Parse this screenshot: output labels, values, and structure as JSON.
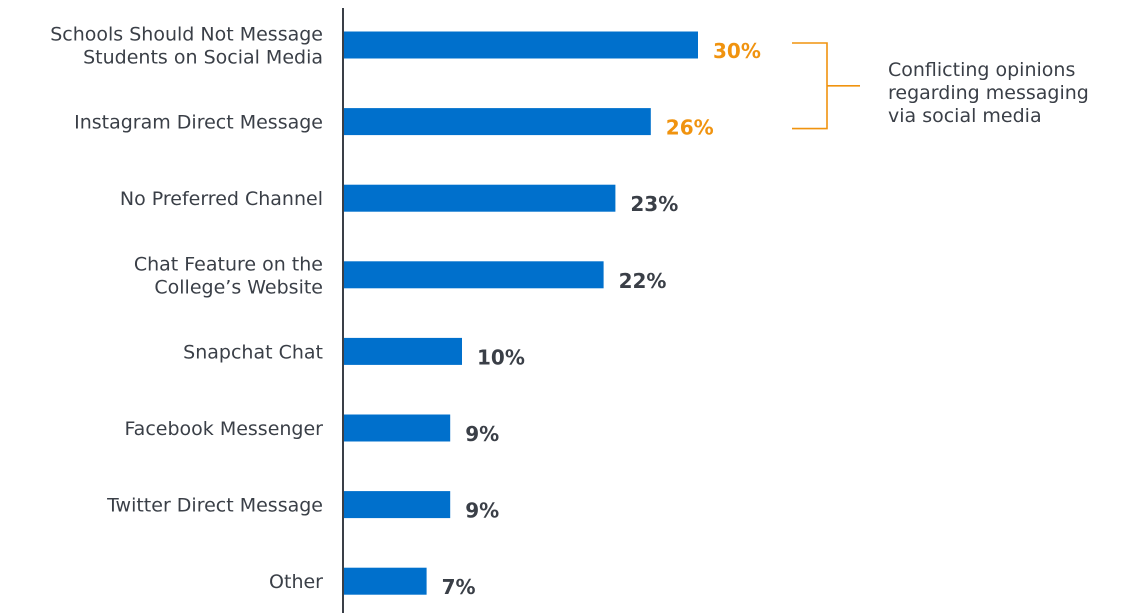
{
  "chart_data": {
    "type": "bar",
    "orientation": "horizontal",
    "categories": [
      [
        "Schools Should Not Message",
        "Students on Social Media"
      ],
      [
        "Instagram Direct Message"
      ],
      [
        "No Preferred Channel"
      ],
      [
        "Chat Feature on the",
        "College’s Website"
      ],
      [
        "Snapchat Chat"
      ],
      [
        "Facebook Messenger"
      ],
      [
        "Twitter Direct Message"
      ],
      [
        "Other"
      ]
    ],
    "values": [
      30,
      26,
      23,
      22,
      10,
      9,
      9,
      7
    ],
    "value_labels": [
      "30%",
      "26%",
      "23%",
      "22%",
      "10%",
      "9%",
      "9%",
      "7%"
    ],
    "highlighted": [
      true,
      true,
      false,
      false,
      false,
      false,
      false,
      false
    ],
    "xlim": [
      0,
      30
    ],
    "grid": false,
    "annotation": {
      "lines": [
        "Conflicting opinions",
        "regarding messaging",
        "via social media"
      ],
      "applies_to": [
        0,
        1
      ]
    },
    "colors": {
      "bar": "#0070cc",
      "highlight_label": "#f0930f",
      "normal_label": "#3a3f47",
      "axis": "#3a3f47",
      "bracket": "#f0930f"
    }
  }
}
